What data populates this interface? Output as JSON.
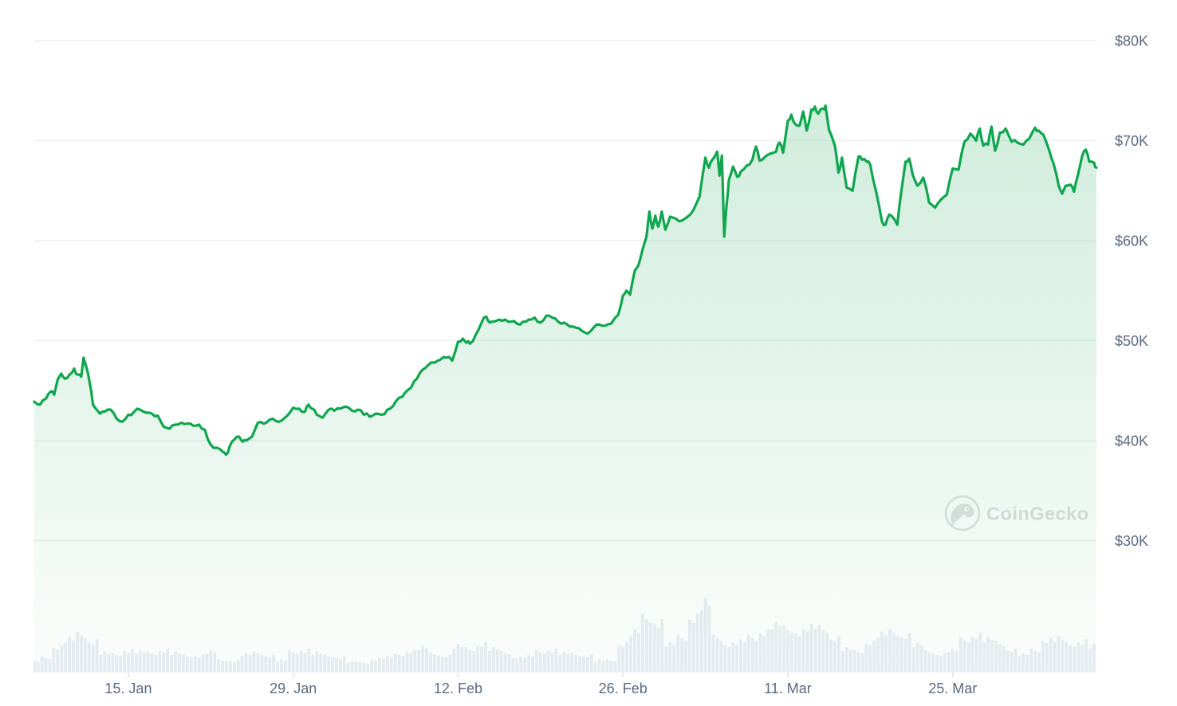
{
  "watermark": {
    "text": "CoinGecko"
  },
  "chart_data": {
    "type": "area",
    "title": "",
    "legend": "none",
    "grid": "horizontal",
    "y_axis_side": "right",
    "y_range": [
      30,
      80
    ],
    "y_unit": "USD thousands",
    "x_unit": "days since first plotted point (date tick labels shown below)",
    "x_range_days": [
      0,
      90.2
    ],
    "y_ticks": [
      {
        "label": "$80K",
        "value": 80
      },
      {
        "label": "$70K",
        "value": 70
      },
      {
        "label": "$60K",
        "value": 60
      },
      {
        "label": "$50K",
        "value": 50
      },
      {
        "label": "$40K",
        "value": 40
      },
      {
        "label": "$30K",
        "value": 30
      }
    ],
    "x_ticks": [
      {
        "label": "15. Jan",
        "day": 8
      },
      {
        "label": "29. Jan",
        "day": 22
      },
      {
        "label": "12. Feb",
        "day": 36
      },
      {
        "label": "26. Feb",
        "day": 50
      },
      {
        "label": "11. Mar",
        "day": 64
      },
      {
        "label": "25. Mar",
        "day": 78
      }
    ],
    "price_series": {
      "name": "Price (USD thousands)",
      "points": [
        [
          0,
          43.9
        ],
        [
          0.5,
          43.6
        ],
        [
          1,
          44.2
        ],
        [
          1.4,
          44.9
        ],
        [
          1.7,
          44.6
        ],
        [
          2,
          46.1
        ],
        [
          2.3,
          46.7
        ],
        [
          2.6,
          46.2
        ],
        [
          3,
          46.6
        ],
        [
          3.4,
          47.2
        ],
        [
          3.7,
          46.6
        ],
        [
          4,
          46.4
        ],
        [
          4.2,
          48.3
        ],
        [
          4.45,
          47.3
        ],
        [
          4.7,
          45.9
        ],
        [
          5,
          43.6
        ],
        [
          5.3,
          43.1
        ],
        [
          5.6,
          42.7
        ],
        [
          6,
          42.9
        ],
        [
          6.5,
          43.1
        ],
        [
          7,
          42.2
        ],
        [
          7.5,
          41.9
        ],
        [
          8,
          42.6
        ],
        [
          8.5,
          42.9
        ],
        [
          9,
          43.1
        ],
        [
          9.5,
          42.8
        ],
        [
          10,
          42.7
        ],
        [
          10.5,
          42.5
        ],
        [
          11,
          41.4
        ],
        [
          11.5,
          41.2
        ],
        [
          12,
          41.6
        ],
        [
          12.5,
          41.8
        ],
        [
          13,
          41.7
        ],
        [
          13.5,
          41.5
        ],
        [
          14,
          41.6
        ],
        [
          14.5,
          41.1
        ],
        [
          15,
          39.6
        ],
        [
          15.5,
          39.3
        ],
        [
          16,
          38.9
        ],
        [
          16.3,
          38.6
        ],
        [
          16.6,
          39.4
        ],
        [
          17,
          40.1
        ],
        [
          17.4,
          40.4
        ],
        [
          17.7,
          39.9
        ],
        [
          18,
          40.0
        ],
        [
          18.5,
          40.4
        ],
        [
          19,
          41.8
        ],
        [
          19.5,
          41.7
        ],
        [
          20,
          42.1
        ],
        [
          20.5,
          42.0
        ],
        [
          21,
          42.0
        ],
        [
          21.5,
          42.5
        ],
        [
          22,
          43.3
        ],
        [
          22.5,
          43.2
        ],
        [
          23,
          42.9
        ],
        [
          23.3,
          43.6
        ],
        [
          23.6,
          43.2
        ],
        [
          24,
          42.6
        ],
        [
          24.5,
          42.3
        ],
        [
          25,
          43.1
        ],
        [
          25.5,
          43.0
        ],
        [
          26,
          43.2
        ],
        [
          26.5,
          43.4
        ],
        [
          27,
          43.0
        ],
        [
          27.5,
          43.1
        ],
        [
          28,
          42.6
        ],
        [
          28.5,
          42.4
        ],
        [
          29,
          42.7
        ],
        [
          29.5,
          42.6
        ],
        [
          30,
          43.1
        ],
        [
          30.5,
          43.5
        ],
        [
          31,
          44.3
        ],
        [
          31.5,
          44.8
        ],
        [
          32,
          45.3
        ],
        [
          32.5,
          46.2
        ],
        [
          33,
          47.1
        ],
        [
          33.5,
          47.6
        ],
        [
          34,
          47.8
        ],
        [
          34.5,
          48.1
        ],
        [
          35,
          48.3
        ],
        [
          35.5,
          48.0
        ],
        [
          36,
          49.9
        ],
        [
          36.4,
          50.2
        ],
        [
          36.7,
          49.8
        ],
        [
          37,
          49.7
        ],
        [
          37.5,
          50.6
        ],
        [
          38,
          51.8
        ],
        [
          38.4,
          52.4
        ],
        [
          38.7,
          51.8
        ],
        [
          39,
          51.9
        ],
        [
          39.5,
          52.1
        ],
        [
          40,
          52.1
        ],
        [
          40.5,
          51.9
        ],
        [
          41,
          51.7
        ],
        [
          41.5,
          51.9
        ],
        [
          42,
          52.1
        ],
        [
          42.5,
          52.3
        ],
        [
          43,
          51.8
        ],
        [
          43.5,
          52.5
        ],
        [
          44,
          52.3
        ],
        [
          44.5,
          51.9
        ],
        [
          45,
          51.8
        ],
        [
          45.5,
          51.4
        ],
        [
          46,
          51.3
        ],
        [
          46.5,
          51.0
        ],
        [
          47,
          50.7
        ],
        [
          47.5,
          51.3
        ],
        [
          48,
          51.6
        ],
        [
          48.5,
          51.5
        ],
        [
          49,
          51.7
        ],
        [
          49.6,
          52.6
        ],
        [
          50,
          54.5
        ],
        [
          50.3,
          55.0
        ],
        [
          50.6,
          54.6
        ],
        [
          51,
          57.0
        ],
        [
          51.3,
          57.5
        ],
        [
          51.6,
          58.8
        ],
        [
          52,
          60.4
        ],
        [
          52.25,
          62.9
        ],
        [
          52.5,
          61.2
        ],
        [
          52.75,
          62.5
        ],
        [
          53,
          61.4
        ],
        [
          53.3,
          62.9
        ],
        [
          53.6,
          61.1
        ],
        [
          54,
          62.4
        ],
        [
          54.5,
          62.2
        ],
        [
          55,
          62.0
        ],
        [
          55.5,
          62.4
        ],
        [
          56,
          63.1
        ],
        [
          56.5,
          64.4
        ],
        [
          57,
          68.3
        ],
        [
          57.3,
          67.3
        ],
        [
          57.6,
          68.1
        ],
        [
          58,
          68.9
        ],
        [
          58.2,
          66.5
        ],
        [
          58.4,
          68.5
        ],
        [
          58.6,
          60.4
        ],
        [
          58.8,
          63.6
        ],
        [
          59,
          66.1
        ],
        [
          59.35,
          67.4
        ],
        [
          59.7,
          66.4
        ],
        [
          60,
          66.9
        ],
        [
          60.5,
          67.5
        ],
        [
          61,
          68.1
        ],
        [
          61.3,
          69.4
        ],
        [
          61.6,
          68.0
        ],
        [
          62,
          68.3
        ],
        [
          62.5,
          68.7
        ],
        [
          63,
          68.9
        ],
        [
          63.3,
          69.8
        ],
        [
          63.6,
          68.8
        ],
        [
          64,
          72.0
        ],
        [
          64.3,
          72.6
        ],
        [
          64.6,
          71.7
        ],
        [
          65,
          71.5
        ],
        [
          65.3,
          72.9
        ],
        [
          65.6,
          71.0
        ],
        [
          66,
          73.1
        ],
        [
          66.3,
          73.4
        ],
        [
          66.6,
          72.7
        ],
        [
          67,
          73.2
        ],
        [
          67.2,
          73.5
        ],
        [
          67.5,
          71.1
        ],
        [
          68,
          69.5
        ],
        [
          68.3,
          66.8
        ],
        [
          68.6,
          68.3
        ],
        [
          69,
          65.3
        ],
        [
          69.5,
          65.0
        ],
        [
          70,
          68.4
        ],
        [
          70.3,
          68.1
        ],
        [
          70.7,
          67.9
        ],
        [
          71,
          67.6
        ],
        [
          71.5,
          64.9
        ],
        [
          72,
          61.9
        ],
        [
          72.3,
          61.6
        ],
        [
          72.6,
          62.6
        ],
        [
          73,
          62.2
        ],
        [
          73.3,
          61.6
        ],
        [
          73.6,
          64.6
        ],
        [
          74,
          67.9
        ],
        [
          74.3,
          68.2
        ],
        [
          74.6,
          66.6
        ],
        [
          75,
          65.5
        ],
        [
          75.5,
          66.3
        ],
        [
          76,
          63.8
        ],
        [
          76.5,
          63.3
        ],
        [
          77,
          64.1
        ],
        [
          77.5,
          64.6
        ],
        [
          78,
          67.2
        ],
        [
          78.5,
          67.1
        ],
        [
          79,
          69.9
        ],
        [
          79.5,
          70.7
        ],
        [
          80,
          70.0
        ],
        [
          80.3,
          71.2
        ],
        [
          80.6,
          69.5
        ],
        [
          81,
          69.6
        ],
        [
          81.3,
          71.4
        ],
        [
          81.6,
          69.0
        ],
        [
          82,
          70.8
        ],
        [
          82.5,
          71.2
        ],
        [
          83,
          69.9
        ],
        [
          83.5,
          69.8
        ],
        [
          84,
          69.6
        ],
        [
          84.5,
          70.2
        ],
        [
          85,
          71.3
        ],
        [
          85.3,
          71.0
        ],
        [
          85.7,
          70.6
        ],
        [
          86,
          69.7
        ],
        [
          86.4,
          68.2
        ],
        [
          86.7,
          67.1
        ],
        [
          87,
          65.5
        ],
        [
          87.3,
          64.7
        ],
        [
          87.6,
          65.5
        ],
        [
          88,
          65.6
        ],
        [
          88.3,
          64.9
        ],
        [
          88.6,
          66.4
        ],
        [
          89,
          68.5
        ],
        [
          89.3,
          69.1
        ],
        [
          89.6,
          67.9
        ],
        [
          90,
          67.8
        ],
        [
          90.2,
          67.3
        ]
      ]
    },
    "volume_series": {
      "name": "Volume (relative height 0-1, one value per day)",
      "values": [
        0.14,
        0.2,
        0.34,
        0.45,
        0.52,
        0.42,
        0.26,
        0.24,
        0.3,
        0.28,
        0.26,
        0.3,
        0.26,
        0.22,
        0.22,
        0.28,
        0.16,
        0.15,
        0.24,
        0.26,
        0.22,
        0.16,
        0.28,
        0.3,
        0.26,
        0.22,
        0.2,
        0.14,
        0.13,
        0.18,
        0.2,
        0.24,
        0.28,
        0.34,
        0.25,
        0.22,
        0.36,
        0.32,
        0.38,
        0.32,
        0.27,
        0.2,
        0.22,
        0.28,
        0.3,
        0.26,
        0.24,
        0.22,
        0.16,
        0.16,
        0.38,
        0.55,
        0.75,
        0.68,
        0.38,
        0.48,
        0.75,
        0.95,
        0.48,
        0.38,
        0.42,
        0.48,
        0.55,
        0.65,
        0.6,
        0.55,
        0.62,
        0.6,
        0.46,
        0.32,
        0.28,
        0.4,
        0.52,
        0.55,
        0.5,
        0.38,
        0.28,
        0.24,
        0.3,
        0.45,
        0.5,
        0.45,
        0.4,
        0.3,
        0.24,
        0.3,
        0.44,
        0.46,
        0.38,
        0.42,
        0.36
      ]
    },
    "colors": {
      "line": "#0fa64f",
      "area_top": "rgba(24,165,80,0.20)",
      "area_bottom": "rgba(24,165,80,0.02)",
      "grid": "#eef1f5",
      "baseline": "#e7ebef",
      "tick": "#e4e8ec",
      "axis_label": "#5b6a80",
      "volume_bar": "#e9edf3",
      "watermark": "#dbdee1"
    }
  }
}
